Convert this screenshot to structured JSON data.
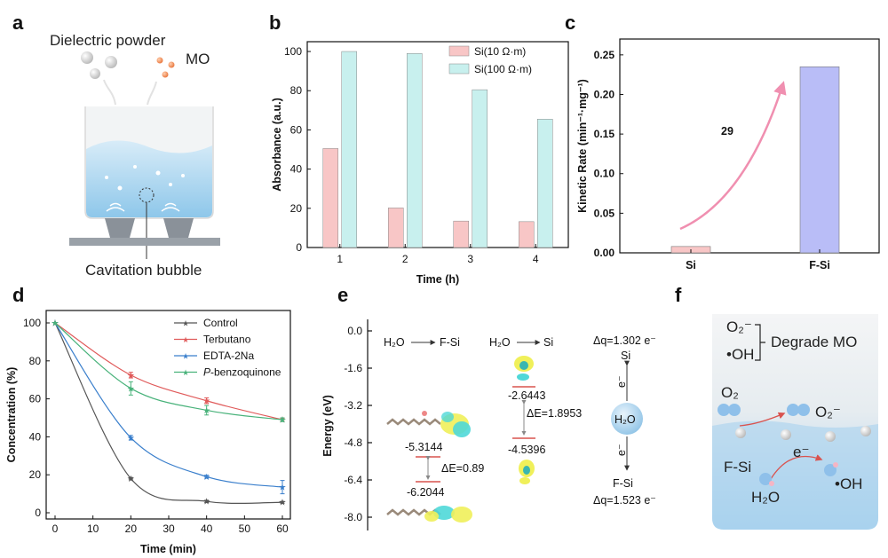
{
  "panel_labels": {
    "a": "a",
    "b": "b",
    "c": "c",
    "d": "d",
    "e": "e",
    "f": "f"
  },
  "panel_a": {
    "dielectric_label": "Dielectric powder",
    "mo_label": "MO",
    "bubble_label": "Cavitation bubble"
  },
  "panel_e": {
    "yticks": [
      "0.0",
      "-1.6",
      "-3.2",
      "-4.8",
      "-6.4",
      "-8.0"
    ],
    "ylabel": "Energy (eV)",
    "fsi_h2o": "H₂O",
    "fsi_target": "F-Si",
    "si_h2o": "H₂O",
    "si_target": "Si",
    "e1": "-5.3144",
    "e2": "-6.2044",
    "de1": "ΔE=0.89",
    "e3": "-2.6443",
    "e4": "-4.5396",
    "de2": "ΔE=1.8953",
    "dq_top": "Δq=1.302 e⁻",
    "si_label": "Si",
    "h2o_center": "H₂O",
    "e_up": "e⁻",
    "e_down": "e⁻",
    "fsi_label": "F-Si",
    "dq_bottom": "Δq=1.523 e⁻"
  },
  "panel_f": {
    "o2_minus": "O₂⁻",
    "oh": "•OH",
    "degrade": "Degrade MO",
    "o2": "O₂",
    "o2_minus_2": "O₂⁻",
    "fsi": "F-Si",
    "e": "e⁻",
    "h2o": "H₂O",
    "oh2": "•OH"
  },
  "colors": {
    "pink": "#f8c6c6",
    "cyan": "#c8f0ee",
    "blue_bar": "#b9bdf7",
    "arrow": "#f08fb0",
    "red_num": "#e04848"
  },
  "chart_data": [
    {
      "id": "b",
      "type": "bar",
      "title": "",
      "xlabel": "Time (h)",
      "ylabel": "Absorbance (a.u.)",
      "categories": [
        "1",
        "2",
        "3",
        "4"
      ],
      "series": [
        {
          "name": "Si(10 Ω·m)",
          "values": [
            50.5,
            20.2,
            13.5,
            13.2
          ]
        },
        {
          "name": "Si(100 Ω·m)",
          "values": [
            100,
            99,
            80.5,
            65.5
          ]
        }
      ],
      "ylim": [
        0,
        105
      ],
      "yticks": [
        0,
        20,
        40,
        60,
        80,
        100
      ],
      "legend": "top-right"
    },
    {
      "id": "c",
      "type": "bar",
      "title": "",
      "xlabel": "",
      "ylabel": "Kinetic Rate (min⁻¹·mg⁻¹)",
      "categories": [
        "Si",
        "F-Si"
      ],
      "values": [
        0.008,
        0.235
      ],
      "ylim": [
        0,
        0.27
      ],
      "yticks": [
        "0.00",
        "0.05",
        "0.10",
        "0.15",
        "0.20",
        "0.25"
      ],
      "annotation": "29"
    },
    {
      "id": "d",
      "type": "line",
      "title": "",
      "xlabel": "Time (min)",
      "ylabel": "Concentration (%)",
      "x": [
        0,
        20,
        40,
        60
      ],
      "xlim": [
        0,
        60
      ],
      "xticks": [
        0,
        10,
        20,
        30,
        40,
        50,
        60
      ],
      "ylim": [
        0,
        100
      ],
      "yticks": [
        0,
        20,
        40,
        60,
        80,
        100
      ],
      "series": [
        {
          "name": "Control",
          "values": [
            100,
            18,
            6,
            5.5
          ],
          "err": [
            0,
            0.6,
            0.6,
            0.5
          ],
          "color": "#555555"
        },
        {
          "name": "Terbutano",
          "values": [
            100,
            72.5,
            59,
            49
          ],
          "err": [
            0,
            1.5,
            1.5,
            0.8
          ],
          "color": "#e05a5a"
        },
        {
          "name": "EDTA-2Na",
          "values": [
            100,
            39.5,
            19,
            13.5
          ],
          "err": [
            0,
            1.2,
            0.8,
            3.5
          ],
          "color": "#3a7fcc"
        },
        {
          "name": "P-benzoquinone",
          "values": [
            100,
            65.5,
            54,
            49
          ],
          "err": [
            0,
            3.5,
            2.5,
            1
          ],
          "color": "#48b27a"
        }
      ],
      "legend": "top-right"
    }
  ]
}
